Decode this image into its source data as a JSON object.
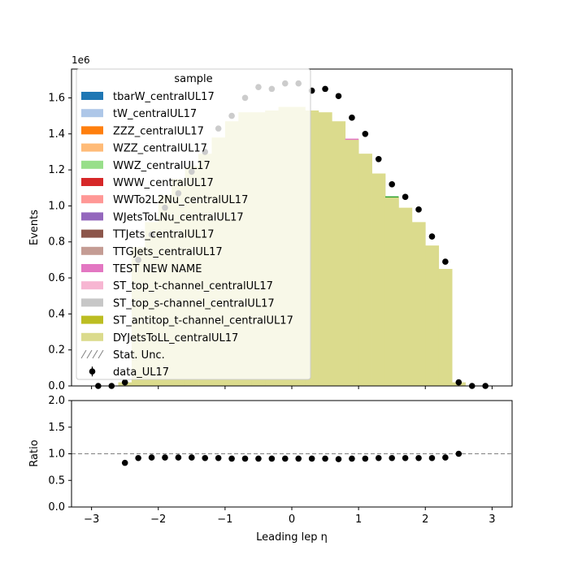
{
  "chart_data": {
    "type": "bar",
    "stacked": true,
    "x_label": "Leading lep η",
    "x_ticks": [
      "−3",
      "−2",
      "−1",
      "0",
      "1",
      "2",
      "3"
    ],
    "xlim": [
      -3.3,
      3.3
    ],
    "bin_edges": [
      -2.6,
      -2.4,
      -2.2,
      -2.0,
      -1.8,
      -1.6,
      -1.4,
      -1.2,
      -1.0,
      -0.8,
      -0.6,
      -0.4,
      -0.2,
      0.0,
      0.2,
      0.4,
      0.6,
      0.8,
      1.0,
      1.2,
      1.4,
      1.6,
      1.8,
      2.0,
      2.2,
      2.4,
      2.6
    ],
    "top_panel": {
      "ylabel": "Events",
      "offset_text": "1e6",
      "ylim": [
        0,
        1.76
      ],
      "y_ticks": [
        "0.0",
        "0.2",
        "0.4",
        "0.6",
        "0.8",
        "1.0",
        "1.2",
        "1.4",
        "1.6"
      ],
      "mc_total": [
        0.02,
        0.77,
        0.91,
        1.06,
        1.15,
        1.22,
        1.29,
        1.38,
        1.47,
        1.52,
        1.52,
        1.53,
        1.55,
        1.55,
        1.53,
        1.52,
        1.47,
        1.37,
        1.29,
        1.18,
        1.05,
        0.99,
        0.91,
        0.78,
        0.65,
        0.02
      ],
      "data_x": [
        -2.9,
        -2.7,
        -2.5,
        -2.3,
        -2.1,
        -1.9,
        -1.7,
        -1.5,
        -1.3,
        -1.1,
        -0.9,
        -0.7,
        -0.5,
        -0.3,
        -0.1,
        0.1,
        0.3,
        0.5,
        0.7,
        0.9,
        1.1,
        1.3,
        1.5,
        1.7,
        1.9,
        2.1,
        2.3,
        2.5,
        2.7,
        2.9
      ],
      "data_y": [
        0.0,
        0.0,
        0.02,
        0.7,
        0.84,
        0.99,
        1.07,
        1.19,
        1.3,
        1.43,
        1.5,
        1.6,
        1.66,
        1.65,
        1.68,
        1.68,
        1.64,
        1.65,
        1.61,
        1.49,
        1.4,
        1.26,
        1.12,
        1.05,
        0.98,
        0.83,
        0.69,
        0.02,
        0.0,
        0.0
      ],
      "stack_line": {
        "color": "#2ca02c",
        "x": [
          1.4,
          1.6
        ],
        "y": 1.05
      },
      "pink_line": {
        "color": "#e377c2",
        "x": [
          0.8,
          1.0
        ],
        "y": 1.37
      }
    },
    "ratio_panel": {
      "ylabel": "Ratio",
      "ylim": [
        0,
        2
      ],
      "y_ticks": [
        "0.0",
        "0.5",
        "1.0",
        "1.5",
        "2.0"
      ],
      "reference_line": 1.0,
      "x": [
        -2.5,
        -2.3,
        -2.1,
        -1.9,
        -1.7,
        -1.5,
        -1.3,
        -1.1,
        -0.9,
        -0.7,
        -0.5,
        -0.3,
        -0.1,
        0.1,
        0.3,
        0.5,
        0.7,
        0.9,
        1.1,
        1.3,
        1.5,
        1.7,
        1.9,
        2.1,
        2.3,
        2.5
      ],
      "y": [
        0.83,
        0.92,
        0.93,
        0.93,
        0.93,
        0.93,
        0.92,
        0.92,
        0.91,
        0.91,
        0.91,
        0.91,
        0.91,
        0.91,
        0.91,
        0.91,
        0.9,
        0.91,
        0.91,
        0.92,
        0.92,
        0.92,
        0.92,
        0.92,
        0.93,
        1.0
      ]
    },
    "legend": {
      "title": "sample",
      "position": "upper-left",
      "entries": [
        {
          "label": "tbarW_centralUL17",
          "color": "#1f77b4",
          "kind": "patch"
        },
        {
          "label": "tW_centralUL17",
          "color": "#aec7e8",
          "kind": "patch"
        },
        {
          "label": "ZZZ_centralUL17",
          "color": "#ff7f0e",
          "kind": "patch"
        },
        {
          "label": "WZZ_centralUL17",
          "color": "#ffbb78",
          "kind": "patch"
        },
        {
          "label": "WWZ_centralUL17",
          "color": "#98df8a",
          "kind": "patch"
        },
        {
          "label": "WWW_centralUL17",
          "color": "#d62728",
          "kind": "patch"
        },
        {
          "label": "WWTo2L2Nu_centralUL17",
          "color": "#ff9896",
          "kind": "patch"
        },
        {
          "label": "WJetsToLNu_centralUL17",
          "color": "#9467bd",
          "kind": "patch"
        },
        {
          "label": "TTJets_centralUL17",
          "color": "#8c564b",
          "kind": "patch"
        },
        {
          "label": "TTGJets_centralUL17",
          "color": "#c49c94",
          "kind": "patch"
        },
        {
          "label": "TEST NEW NAME",
          "color": "#e377c2",
          "kind": "patch"
        },
        {
          "label": "ST_top_t-channel_centralUL17",
          "color": "#f7b6d2",
          "kind": "patch"
        },
        {
          "label": "ST_top_s-channel_centralUL17",
          "color": "#c7c7c7",
          "kind": "patch"
        },
        {
          "label": "ST_antitop_t-channel_centralUL17",
          "color": "#bcbd22",
          "kind": "patch"
        },
        {
          "label": "DYJetsToLL_centralUL17",
          "color": "#dbdb8d",
          "kind": "patch"
        },
        {
          "label": "Stat. Unc.",
          "color": "#808080",
          "kind": "hatch"
        },
        {
          "label": "data_UL17",
          "color": "#000000",
          "kind": "marker"
        }
      ]
    },
    "colors": {
      "dy_fill": "#dbdb8d",
      "data_marker": "#000000",
      "legend_background": "rgba(255,255,255,0.8)",
      "reference_line": "#808080"
    }
  }
}
